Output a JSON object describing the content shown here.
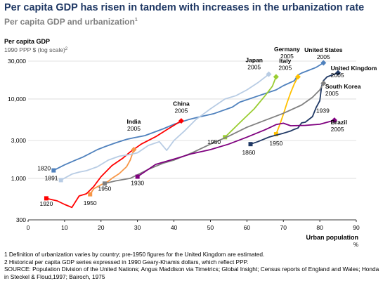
{
  "header": {
    "title": "Per capita GDP has risen in tandem with increases in the urbanization rate",
    "subtitle": "Per capita GDP and urbanization",
    "subtitle_note": "1"
  },
  "footer": {
    "notes": [
      "1  Definition of urbanization varies by country; pre-1950 figures for the United Kingdom are estimated.",
      "2  Historical per capita GDP series expressed in 1990 Geary-Khamis dollars, which reflect PPP."
    ],
    "source": "SOURCE: Population Division of the United Nations; Angus Maddison via Timetrics; Global Insight; Census reports of England and Wales; Honda in Steckel & Floud,1997; Bairoch, 1975"
  },
  "chart_data": {
    "type": "line",
    "ylabel": "Per capita GDP",
    "ylabel_sub": "1990 PPP $ (log scale)",
    "ylabel_sub_note": "2",
    "xlabel": "Urban population",
    "xunit": "%",
    "xlim": [
      0,
      90
    ],
    "ylim": [
      300,
      30000
    ],
    "yscale": "log",
    "xticks": [
      0,
      10,
      20,
      30,
      40,
      50,
      60,
      70,
      80,
      90
    ],
    "yticks": [
      300,
      1000,
      3000,
      10000,
      30000
    ],
    "ytick_labels": [
      "300",
      "1,000",
      "3,000",
      "10,000",
      "30,000"
    ],
    "grid": "horizontal",
    "series": [
      {
        "name": "United States",
        "color": "#4f81bd",
        "start_label": "1820",
        "end_label": "2005",
        "points": [
          [
            7,
            1260
          ],
          [
            10,
            1480
          ],
          [
            13,
            1700
          ],
          [
            15,
            1850
          ],
          [
            19,
            2300
          ],
          [
            21,
            2500
          ],
          [
            24,
            2800
          ],
          [
            27,
            3100
          ],
          [
            29,
            3250
          ],
          [
            32,
            3450
          ],
          [
            37,
            4200
          ],
          [
            40,
            4800
          ],
          [
            44,
            5500
          ],
          [
            47,
            5950
          ],
          [
            51,
            6550
          ],
          [
            56,
            7900
          ],
          [
            58,
            9100
          ],
          [
            63,
            10900
          ],
          [
            68,
            13000
          ],
          [
            70,
            14700
          ],
          [
            73,
            17000
          ],
          [
            74,
            20000
          ],
          [
            75,
            21200
          ],
          [
            77,
            23000
          ],
          [
            79,
            25000
          ],
          [
            81,
            28500
          ]
        ]
      },
      {
        "name": "China",
        "color": "#ff0000",
        "start_label": "1920",
        "end_label": "2005",
        "points": [
          [
            5,
            560
          ],
          [
            8,
            520
          ],
          [
            10,
            470
          ],
          [
            12,
            430
          ],
          [
            14,
            600
          ],
          [
            16,
            640
          ],
          [
            18,
            790
          ],
          [
            20,
            1050
          ],
          [
            23,
            1450
          ],
          [
            26,
            1800
          ],
          [
            28,
            2150
          ],
          [
            31,
            2700
          ],
          [
            35,
            3350
          ],
          [
            38,
            4100
          ],
          [
            42,
            5300
          ]
        ]
      },
      {
        "name": "India",
        "color": "#f79646",
        "start_label": "1950",
        "end_label": "2005",
        "points": [
          [
            17,
            630
          ],
          [
            18,
            740
          ],
          [
            20,
            830
          ],
          [
            22,
            920
          ],
          [
            23,
            1000
          ],
          [
            25,
            1150
          ],
          [
            27,
            1400
          ],
          [
            28,
            1700
          ],
          [
            29,
            2300
          ]
        ]
      },
      {
        "name": "Japan",
        "color": "#b8cce4",
        "start_label": "1891",
        "end_label": "2005",
        "points": [
          [
            9,
            950
          ],
          [
            12,
            1130
          ],
          [
            14,
            1200
          ],
          [
            16,
            1250
          ],
          [
            19,
            1400
          ],
          [
            22,
            1700
          ],
          [
            25,
            1900
          ],
          [
            28,
            2000
          ],
          [
            30,
            2100
          ],
          [
            33,
            2600
          ],
          [
            36,
            2900
          ],
          [
            38,
            2250
          ],
          [
            40,
            3000
          ],
          [
            43,
            4000
          ],
          [
            46,
            5500
          ],
          [
            50,
            7500
          ],
          [
            54,
            10000
          ],
          [
            57,
            11000
          ],
          [
            60,
            13000
          ],
          [
            63,
            16000
          ],
          [
            66,
            20500
          ]
        ]
      },
      {
        "name": "Italy",
        "color": "#9acd32",
        "start_label": "1950",
        "end_label": "2005",
        "points": [
          [
            54,
            3300
          ],
          [
            58,
            5000
          ],
          [
            62,
            7500
          ],
          [
            65,
            11000
          ],
          [
            67,
            14500
          ],
          [
            68,
            19000
          ]
        ]
      },
      {
        "name": "Germany",
        "color": "#ffc000",
        "start_label": "1950",
        "end_label": "2005",
        "points": [
          [
            68,
            3600
          ],
          [
            69,
            4700
          ],
          [
            70,
            6400
          ],
          [
            71,
            8900
          ],
          [
            72,
            12000
          ],
          [
            73,
            15500
          ],
          [
            74,
            19000
          ]
        ]
      },
      {
        "name": "United Kingdom",
        "color": "#1f3864",
        "start_label": "1860",
        "end_label": "2005",
        "points": [
          [
            61,
            2700
          ],
          [
            63,
            2900
          ],
          [
            66,
            3300
          ],
          [
            68,
            3500
          ],
          [
            70,
            3700
          ],
          [
            72,
            3950
          ],
          [
            73,
            4150
          ],
          [
            74,
            4300
          ],
          [
            75,
            5000
          ],
          [
            76,
            5100
          ],
          [
            78,
            6000
          ],
          [
            79,
            7800
          ],
          [
            80,
            9500
          ],
          [
            80.5,
            14500
          ],
          [
            81,
            17000
          ],
          [
            82,
            19000
          ],
          [
            85,
            21300
          ]
        ]
      },
      {
        "name": "South Korea",
        "color": "#808080",
        "start_label": "1950",
        "end_label": "2005",
        "points": [
          [
            21,
            860
          ],
          [
            24,
            930
          ],
          [
            28,
            1000
          ],
          [
            33,
            1300
          ],
          [
            37,
            1550
          ],
          [
            40,
            1700
          ],
          [
            45,
            2100
          ],
          [
            50,
            2700
          ],
          [
            55,
            3400
          ],
          [
            60,
            4400
          ],
          [
            65,
            5400
          ],
          [
            70,
            6600
          ],
          [
            75,
            8400
          ],
          [
            78,
            10500
          ],
          [
            80,
            13000
          ],
          [
            81,
            15800
          ]
        ]
      },
      {
        "name": "Brazil",
        "color": "#7f007f",
        "start_label": "1930",
        "end_label": "2005",
        "points": [
          [
            30,
            1050
          ],
          [
            35,
            1500
          ],
          [
            40,
            1750
          ],
          [
            45,
            2050
          ],
          [
            50,
            2300
          ],
          [
            55,
            2700
          ],
          [
            60,
            3300
          ],
          [
            65,
            4100
          ],
          [
            68,
            4750
          ],
          [
            70,
            4950
          ],
          [
            72,
            4600
          ],
          [
            76,
            4650
          ],
          [
            80,
            4800
          ],
          [
            84,
            5400
          ]
        ]
      }
    ],
    "annotations": [
      {
        "lines": [
          "1820"
        ],
        "x": 6.2,
        "y": 1260,
        "anchor": "end"
      },
      {
        "lines": [
          "1891"
        ],
        "x": 8.2,
        "y": 950,
        "anchor": "end"
      },
      {
        "lines": [
          "1920"
        ],
        "x": 5,
        "y": 450,
        "anchor": "middle"
      },
      {
        "lines": [
          "1950"
        ],
        "x": 17,
        "y": 460,
        "anchor": "middle"
      },
      {
        "lines": [
          "1950"
        ],
        "x": 21,
        "y": 700,
        "anchor": "middle"
      },
      {
        "lines": [
          "1930"
        ],
        "x": 30,
        "y": 820,
        "anchor": "middle"
      },
      {
        "lines": [
          "India",
          "2005"
        ],
        "x": 29,
        "y": 4900,
        "anchor": "middle"
      },
      {
        "lines": [
          "China",
          "2005"
        ],
        "x": 42,
        "y": 8200,
        "anchor": "middle"
      },
      {
        "lines": [
          "1950"
        ],
        "x": 51,
        "y": 2700,
        "anchor": "middle"
      },
      {
        "lines": [
          "Japan",
          "2005"
        ],
        "x": 62,
        "y": 29000,
        "anchor": "middle"
      },
      {
        "lines": [
          "1860"
        ],
        "x": 60.5,
        "y": 2000,
        "anchor": "middle"
      },
      {
        "lines": [
          "Germany",
          "2005"
        ],
        "x": 71,
        "y": 40000,
        "anchor": "middle"
      },
      {
        "lines": [
          "Italy",
          "2005"
        ],
        "x": 70.5,
        "y": 28500,
        "anchor": "middle"
      },
      {
        "lines": [
          "1950"
        ],
        "x": 68,
        "y": 2600,
        "anchor": "middle"
      },
      {
        "lines": [
          "United States",
          "2005"
        ],
        "x": 81,
        "y": 39000,
        "anchor": "middle"
      },
      {
        "lines": [
          "United Kingdom",
          "2005"
        ],
        "x": 83,
        "y": 23000,
        "anchor": "start"
      },
      {
        "lines": [
          "South Korea",
          "2005"
        ],
        "x": 81.5,
        "y": 13500,
        "anchor": "start"
      },
      {
        "lines": [
          "1939"
        ],
        "x": 79,
        "y": 6700,
        "anchor": "start"
      },
      {
        "lines": [
          "Brazil",
          "2005"
        ],
        "x": 83,
        "y": 4800,
        "anchor": "start"
      }
    ]
  }
}
